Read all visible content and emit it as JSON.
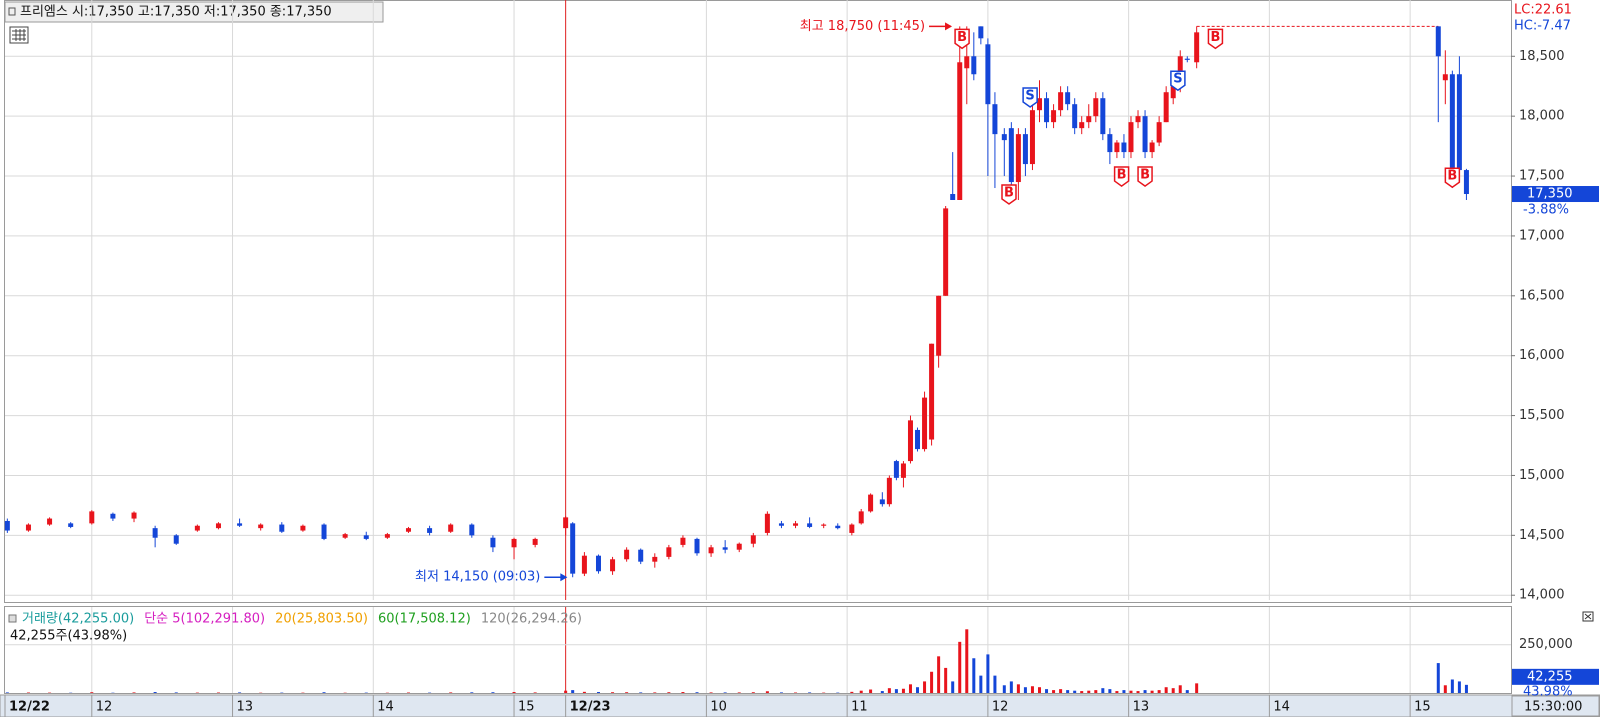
{
  "header": "프리엠스 시:17,350 고:17,350 저:17,350 종:17,350",
  "chart_data": {
    "type": "candlestick",
    "up_color": "#e8141c",
    "down_color": "#1446d8",
    "xlim": [
      -37,
      605
    ],
    "xticks": [
      {
        "value": -37,
        "label": "12/22"
      },
      {
        "value": 0,
        "label": "12"
      },
      {
        "value": 60,
        "label": "13"
      },
      {
        "value": 120,
        "label": "14"
      },
      {
        "value": 180,
        "label": "15"
      },
      {
        "value": 202,
        "label": "12/23"
      },
      {
        "value": 262,
        "label": "10"
      },
      {
        "value": 322,
        "label": "11"
      },
      {
        "value": 382,
        "label": "12"
      },
      {
        "value": 442,
        "label": "13"
      },
      {
        "value": 502,
        "label": "14"
      },
      {
        "value": 562,
        "label": "15"
      }
    ],
    "time_end": "15:30:00",
    "ylim": [
      13960,
      18970
    ],
    "yticks": [
      {
        "value": 14000,
        "label": "14,000"
      },
      {
        "value": 14500,
        "label": "14,500"
      },
      {
        "value": 15000,
        "label": "15,000"
      },
      {
        "value": 15500,
        "label": "15,500"
      },
      {
        "value": 16000,
        "label": "16,000"
      },
      {
        "value": 16500,
        "label": "16,500"
      },
      {
        "value": 17000,
        "label": "17,000"
      },
      {
        "value": 17500,
        "label": "17,500"
      },
      {
        "value": 18000,
        "label": "18,000"
      },
      {
        "value": 18500,
        "label": "18,500"
      }
    ],
    "grid": true,
    "lc": "LC:22.61",
    "hc": "HC:-7.47",
    "last_price": {
      "value": 17350,
      "label": "17,350"
    },
    "last_change": "-3.88%",
    "annotations": [
      {
        "text": "최고 18,750 (11:45)",
        "t": 368,
        "price": 18750,
        "color": "#e8141c"
      },
      {
        "text": "최저 14,150 (09:03)",
        "t": 204,
        "price": 14150,
        "color": "#1446d8"
      }
    ],
    "signals": [
      {
        "t": 371,
        "price": 18650,
        "label": "B",
        "color": "#e8141c"
      },
      {
        "t": 391,
        "price": 17350,
        "label": "B",
        "color": "#e8141c"
      },
      {
        "t": 400,
        "price": 18160,
        "label": "S",
        "color": "#1446d8"
      },
      {
        "t": 439,
        "price": 17500,
        "label": "B",
        "color": "#e8141c"
      },
      {
        "t": 449,
        "price": 17500,
        "label": "B",
        "color": "#e8141c"
      },
      {
        "t": 463,
        "price": 18300,
        "label": "S",
        "color": "#1446d8"
      },
      {
        "t": 479,
        "price": 18650,
        "label": "B",
        "color": "#e8141c"
      },
      {
        "t": 580,
        "price": 17490,
        "label": "B",
        "color": "#e8141c"
      }
    ],
    "candles": [
      {
        "t": -36,
        "open": 14620,
        "high": 14640,
        "low": 14520,
        "close": 14540,
        "volume": 3000
      },
      {
        "t": -27,
        "open": 14540,
        "high": 14600,
        "low": 14530,
        "close": 14590,
        "volume": 2500
      },
      {
        "t": -18,
        "open": 14590,
        "high": 14650,
        "low": 14580,
        "close": 14640,
        "volume": 2000
      },
      {
        "t": -9,
        "open": 14600,
        "high": 14610,
        "low": 14560,
        "close": 14570,
        "volume": 1500
      },
      {
        "t": 0,
        "open": 14600,
        "high": 14710,
        "low": 14590,
        "close": 14700,
        "volume": 4000
      },
      {
        "t": 9,
        "open": 14680,
        "high": 14690,
        "low": 14620,
        "close": 14640,
        "volume": 1500
      },
      {
        "t": 18,
        "open": 14640,
        "high": 14700,
        "low": 14610,
        "close": 14690,
        "volume": 3000
      },
      {
        "t": 27,
        "open": 14560,
        "high": 14580,
        "low": 14400,
        "close": 14480,
        "volume": 5000
      },
      {
        "t": 36,
        "open": 14500,
        "high": 14510,
        "low": 14420,
        "close": 14430,
        "volume": 3000
      },
      {
        "t": 45,
        "open": 14540,
        "high": 14590,
        "low": 14530,
        "close": 14580,
        "volume": 2000
      },
      {
        "t": 54,
        "open": 14560,
        "high": 14610,
        "low": 14550,
        "close": 14600,
        "volume": 2500
      },
      {
        "t": 63,
        "open": 14600,
        "high": 14640,
        "low": 14570,
        "close": 14580,
        "volume": 3000
      },
      {
        "t": 72,
        "open": 14560,
        "high": 14600,
        "low": 14540,
        "close": 14590,
        "volume": 1500
      },
      {
        "t": 81,
        "open": 14590,
        "high": 14610,
        "low": 14520,
        "close": 14530,
        "volume": 2000
      },
      {
        "t": 90,
        "open": 14540,
        "high": 14590,
        "low": 14530,
        "close": 14580,
        "volume": 1800
      },
      {
        "t": 99,
        "open": 14590,
        "high": 14600,
        "low": 14460,
        "close": 14470,
        "volume": 4000
      },
      {
        "t": 108,
        "open": 14480,
        "high": 14520,
        "low": 14470,
        "close": 14510,
        "volume": 1500
      },
      {
        "t": 117,
        "open": 14500,
        "high": 14530,
        "low": 14460,
        "close": 14470,
        "volume": 2000
      },
      {
        "t": 126,
        "open": 14480,
        "high": 14520,
        "low": 14470,
        "close": 14510,
        "volume": 1500
      },
      {
        "t": 135,
        "open": 14530,
        "high": 14570,
        "low": 14520,
        "close": 14560,
        "volume": 2500
      },
      {
        "t": 144,
        "open": 14560,
        "high": 14580,
        "low": 14500,
        "close": 14520,
        "volume": 2000
      },
      {
        "t": 153,
        "open": 14530,
        "high": 14600,
        "low": 14520,
        "close": 14590,
        "volume": 3000
      },
      {
        "t": 162,
        "open": 14590,
        "high": 14600,
        "low": 14480,
        "close": 14500,
        "volume": 3500
      },
      {
        "t": 171,
        "open": 14480,
        "high": 14500,
        "low": 14360,
        "close": 14400,
        "volume": 4000
      },
      {
        "t": 180,
        "open": 14400,
        "high": 14480,
        "low": 14300,
        "close": 14470,
        "volume": 5000
      },
      {
        "t": 189,
        "open": 14420,
        "high": 14480,
        "low": 14400,
        "close": 14470,
        "volume": 3000
      },
      {
        "t": 202,
        "open": 14560,
        "high": 14660,
        "low": 14500,
        "close": 14650,
        "volume": 12000
      },
      {
        "t": 205,
        "open": 14600,
        "high": 14610,
        "low": 14150,
        "close": 14180,
        "volume": 15000
      },
      {
        "t": 210,
        "open": 14180,
        "high": 14360,
        "low": 14160,
        "close": 14330,
        "volume": 6000
      },
      {
        "t": 216,
        "open": 14330,
        "high": 14340,
        "low": 14180,
        "close": 14200,
        "volume": 5000
      },
      {
        "t": 222,
        "open": 14200,
        "high": 14320,
        "low": 14170,
        "close": 14300,
        "volume": 4000
      },
      {
        "t": 228,
        "open": 14300,
        "high": 14400,
        "low": 14280,
        "close": 14380,
        "volume": 4000
      },
      {
        "t": 234,
        "open": 14380,
        "high": 14390,
        "low": 14260,
        "close": 14280,
        "volume": 3000
      },
      {
        "t": 240,
        "open": 14280,
        "high": 14350,
        "low": 14230,
        "close": 14320,
        "volume": 3000
      },
      {
        "t": 246,
        "open": 14320,
        "high": 14420,
        "low": 14300,
        "close": 14400,
        "volume": 4000
      },
      {
        "t": 252,
        "open": 14420,
        "high": 14500,
        "low": 14400,
        "close": 14480,
        "volume": 5000
      },
      {
        "t": 258,
        "open": 14470,
        "high": 14480,
        "low": 14330,
        "close": 14350,
        "volume": 4000
      },
      {
        "t": 264,
        "open": 14350,
        "high": 14420,
        "low": 14320,
        "close": 14400,
        "volume": 3000
      },
      {
        "t": 270,
        "open": 14400,
        "high": 14460,
        "low": 14350,
        "close": 14380,
        "volume": 3000
      },
      {
        "t": 276,
        "open": 14380,
        "high": 14440,
        "low": 14360,
        "close": 14430,
        "volume": 3000
      },
      {
        "t": 282,
        "open": 14430,
        "high": 14520,
        "low": 14400,
        "close": 14500,
        "volume": 4000
      },
      {
        "t": 288,
        "open": 14520,
        "high": 14700,
        "low": 14500,
        "close": 14680,
        "volume": 9000
      },
      {
        "t": 294,
        "open": 14600,
        "high": 14620,
        "low": 14560,
        "close": 14580,
        "volume": 3000
      },
      {
        "t": 300,
        "open": 14580,
        "high": 14620,
        "low": 14560,
        "close": 14600,
        "volume": 2500
      },
      {
        "t": 306,
        "open": 14600,
        "high": 14650,
        "low": 14560,
        "close": 14570,
        "volume": 3000
      },
      {
        "t": 312,
        "open": 14580,
        "high": 14600,
        "low": 14560,
        "close": 14590,
        "volume": 2000
      },
      {
        "t": 318,
        "open": 14580,
        "high": 14600,
        "low": 14550,
        "close": 14560,
        "volume": 2000
      },
      {
        "t": 324,
        "open": 14520,
        "high": 14600,
        "low": 14500,
        "close": 14590,
        "volume": 6000
      },
      {
        "t": 328,
        "open": 14600,
        "high": 14720,
        "low": 14590,
        "close": 14700,
        "volume": 12000
      },
      {
        "t": 332,
        "open": 14700,
        "high": 14850,
        "low": 14690,
        "close": 14840,
        "volume": 18000
      },
      {
        "t": 337,
        "open": 14800,
        "high": 14860,
        "low": 14740,
        "close": 14760,
        "volume": 10000
      },
      {
        "t": 340,
        "open": 14760,
        "high": 15000,
        "low": 14740,
        "close": 14980,
        "volume": 25000
      },
      {
        "t": 343,
        "open": 15120,
        "high": 15130,
        "low": 14960,
        "close": 14980,
        "volume": 20000
      },
      {
        "t": 346,
        "open": 14980,
        "high": 15120,
        "low": 14900,
        "close": 15100,
        "volume": 22000
      },
      {
        "t": 349,
        "open": 15120,
        "high": 15500,
        "low": 15100,
        "close": 15460,
        "volume": 45000
      },
      {
        "t": 352,
        "open": 15380,
        "high": 15400,
        "low": 15200,
        "close": 15220,
        "volume": 30000
      },
      {
        "t": 355,
        "open": 15220,
        "high": 15700,
        "low": 15200,
        "close": 15650,
        "volume": 60000
      },
      {
        "t": 358,
        "open": 15300,
        "high": 16100,
        "low": 15250,
        "close": 16100,
        "volume": 110000
      },
      {
        "t": 361,
        "open": 16000,
        "high": 16500,
        "low": 15900,
        "close": 16500,
        "volume": 190000
      },
      {
        "t": 364,
        "open": 16500,
        "high": 17250,
        "low": 16500,
        "close": 17230,
        "volume": 130000
      },
      {
        "t": 367,
        "open": 17350,
        "high": 17700,
        "low": 17300,
        "close": 17300,
        "volume": 60000
      },
      {
        "t": 370,
        "open": 17300,
        "high": 18750,
        "low": 17300,
        "close": 18450,
        "volume": 265000
      },
      {
        "t": 373,
        "open": 18400,
        "high": 18750,
        "low": 18100,
        "close": 18500,
        "volume": 330000
      },
      {
        "t": 376,
        "open": 18500,
        "high": 18700,
        "low": 18300,
        "close": 18350,
        "volume": 180000
      },
      {
        "t": 379,
        "open": 18750,
        "high": 18750,
        "low": 18600,
        "close": 18650,
        "volume": 90000
      },
      {
        "t": 382,
        "open": 18600,
        "high": 18650,
        "low": 17500,
        "close": 18100,
        "volume": 200000
      },
      {
        "t": 385,
        "open": 18100,
        "high": 18200,
        "low": 17400,
        "close": 17850,
        "volume": 90000
      },
      {
        "t": 389,
        "open": 17850,
        "high": 17900,
        "low": 17500,
        "close": 17800,
        "volume": 40000
      },
      {
        "t": 392,
        "open": 17900,
        "high": 17950,
        "low": 17300,
        "close": 17450,
        "volume": 60000
      },
      {
        "t": 395,
        "open": 17450,
        "high": 17900,
        "low": 17300,
        "close": 17850,
        "volume": 45000
      },
      {
        "t": 398,
        "open": 17850,
        "high": 17900,
        "low": 17500,
        "close": 17600,
        "volume": 30000
      },
      {
        "t": 401,
        "open": 17600,
        "high": 18100,
        "low": 17550,
        "close": 18050,
        "volume": 35000
      },
      {
        "t": 404,
        "open": 18050,
        "high": 18300,
        "low": 17950,
        "close": 18150,
        "volume": 30000
      },
      {
        "t": 407,
        "open": 18150,
        "high": 18200,
        "low": 17900,
        "close": 17950,
        "volume": 20000
      },
      {
        "t": 410,
        "open": 17950,
        "high": 18100,
        "low": 17900,
        "close": 18050,
        "volume": 15000
      },
      {
        "t": 413,
        "open": 18050,
        "high": 18250,
        "low": 18000,
        "close": 18200,
        "volume": 20000
      },
      {
        "t": 416,
        "open": 18200,
        "high": 18250,
        "low": 18050,
        "close": 18100,
        "volume": 15000
      },
      {
        "t": 419,
        "open": 18100,
        "high": 18150,
        "low": 17850,
        "close": 17900,
        "volume": 12000
      },
      {
        "t": 422,
        "open": 17900,
        "high": 18000,
        "low": 17850,
        "close": 17950,
        "volume": 10000
      },
      {
        "t": 425,
        "open": 17950,
        "high": 18100,
        "low": 17900,
        "close": 18000,
        "volume": 12000
      },
      {
        "t": 428,
        "open": 18000,
        "high": 18200,
        "low": 17950,
        "close": 18150,
        "volume": 15000
      },
      {
        "t": 431,
        "open": 18150,
        "high": 18200,
        "low": 17800,
        "close": 17850,
        "volume": 25000
      },
      {
        "t": 434,
        "open": 17850,
        "high": 17900,
        "low": 17600,
        "close": 17700,
        "volume": 20000
      },
      {
        "t": 437,
        "open": 17700,
        "high": 17800,
        "low": 17650,
        "close": 17780,
        "volume": 10000
      },
      {
        "t": 440,
        "open": 17780,
        "high": 17850,
        "low": 17650,
        "close": 17700,
        "volume": 15000
      },
      {
        "t": 443,
        "open": 17700,
        "high": 18000,
        "low": 17650,
        "close": 17950,
        "volume": 12000
      },
      {
        "t": 446,
        "open": 17950,
        "high": 18050,
        "low": 17900,
        "close": 18000,
        "volume": 10000
      },
      {
        "t": 449,
        "open": 18000,
        "high": 18050,
        "low": 17650,
        "close": 17700,
        "volume": 15000
      },
      {
        "t": 452,
        "open": 17700,
        "high": 17800,
        "low": 17650,
        "close": 17780,
        "volume": 12000
      },
      {
        "t": 455,
        "open": 17780,
        "high": 18000,
        "low": 17750,
        "close": 17950,
        "volume": 15000
      },
      {
        "t": 458,
        "open": 17950,
        "high": 18250,
        "low": 17950,
        "close": 18200,
        "volume": 30000
      },
      {
        "t": 461,
        "open": 18150,
        "high": 18300,
        "low": 18100,
        "close": 18250,
        "volume": 25000
      },
      {
        "t": 464,
        "open": 18250,
        "high": 18550,
        "low": 18200,
        "close": 18500,
        "volume": 40000
      },
      {
        "t": 467,
        "open": 18480,
        "high": 18500,
        "low": 18450,
        "close": 18470,
        "volume": 15000
      },
      {
        "t": 471,
        "open": 18450,
        "high": 18750,
        "low": 18400,
        "close": 18700,
        "volume": 50000
      },
      {
        "t": 574,
        "open": 18750,
        "high": 18750,
        "low": 17950,
        "close": 18500,
        "volume": 155000
      },
      {
        "t": 577,
        "open": 18300,
        "high": 18550,
        "low": 18100,
        "close": 18350,
        "volume": 40000
      },
      {
        "t": 580,
        "open": 18350,
        "high": 18380,
        "low": 17400,
        "close": 17450,
        "volume": 70000
      },
      {
        "t": 583,
        "open": 18350,
        "high": 18500,
        "low": 17500,
        "close": 17550,
        "volume": 60000
      },
      {
        "t": 586,
        "open": 17550,
        "high": 17560,
        "low": 17300,
        "close": 17350,
        "volume": 42255
      }
    ],
    "vlim": [
      0,
      430000
    ],
    "vticks": [
      {
        "value": 250000,
        "label": "250,000"
      }
    ],
    "volume_legend": [
      {
        "text": "거래량(42,255.00)",
        "color": "#1a9c9c"
      },
      {
        "text": "단순 5(102,291.80)",
        "color": "#d51fc0"
      },
      {
        "text": "20(25,803.50)",
        "color": "#f0a000"
      },
      {
        "text": "60(17,508.12)",
        "color": "#20a020"
      },
      {
        "text": "120(26,294.26)",
        "color": "#888888"
      }
    ],
    "volume_note": "42,255주(43.98%)",
    "last_volume": {
      "value": 42255,
      "label": "42,255"
    },
    "last_volume_pct": "43.98%"
  }
}
